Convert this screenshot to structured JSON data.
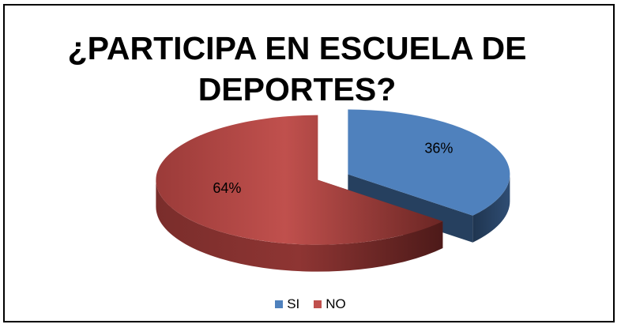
{
  "chart_data": {
    "type": "pie",
    "title": "¿PARTICIPA EN ESCUELA DE DEPORTES?",
    "style": "3d-exploded",
    "legend_position": "bottom",
    "slices": [
      {
        "name": "SI",
        "value": 36,
        "label": "36%",
        "color": "#4f81bd",
        "side_color": "#26405f"
      },
      {
        "name": "NO",
        "value": 64,
        "label": "64%",
        "color": "#c0504d",
        "side_color": "#6b2624"
      }
    ]
  }
}
